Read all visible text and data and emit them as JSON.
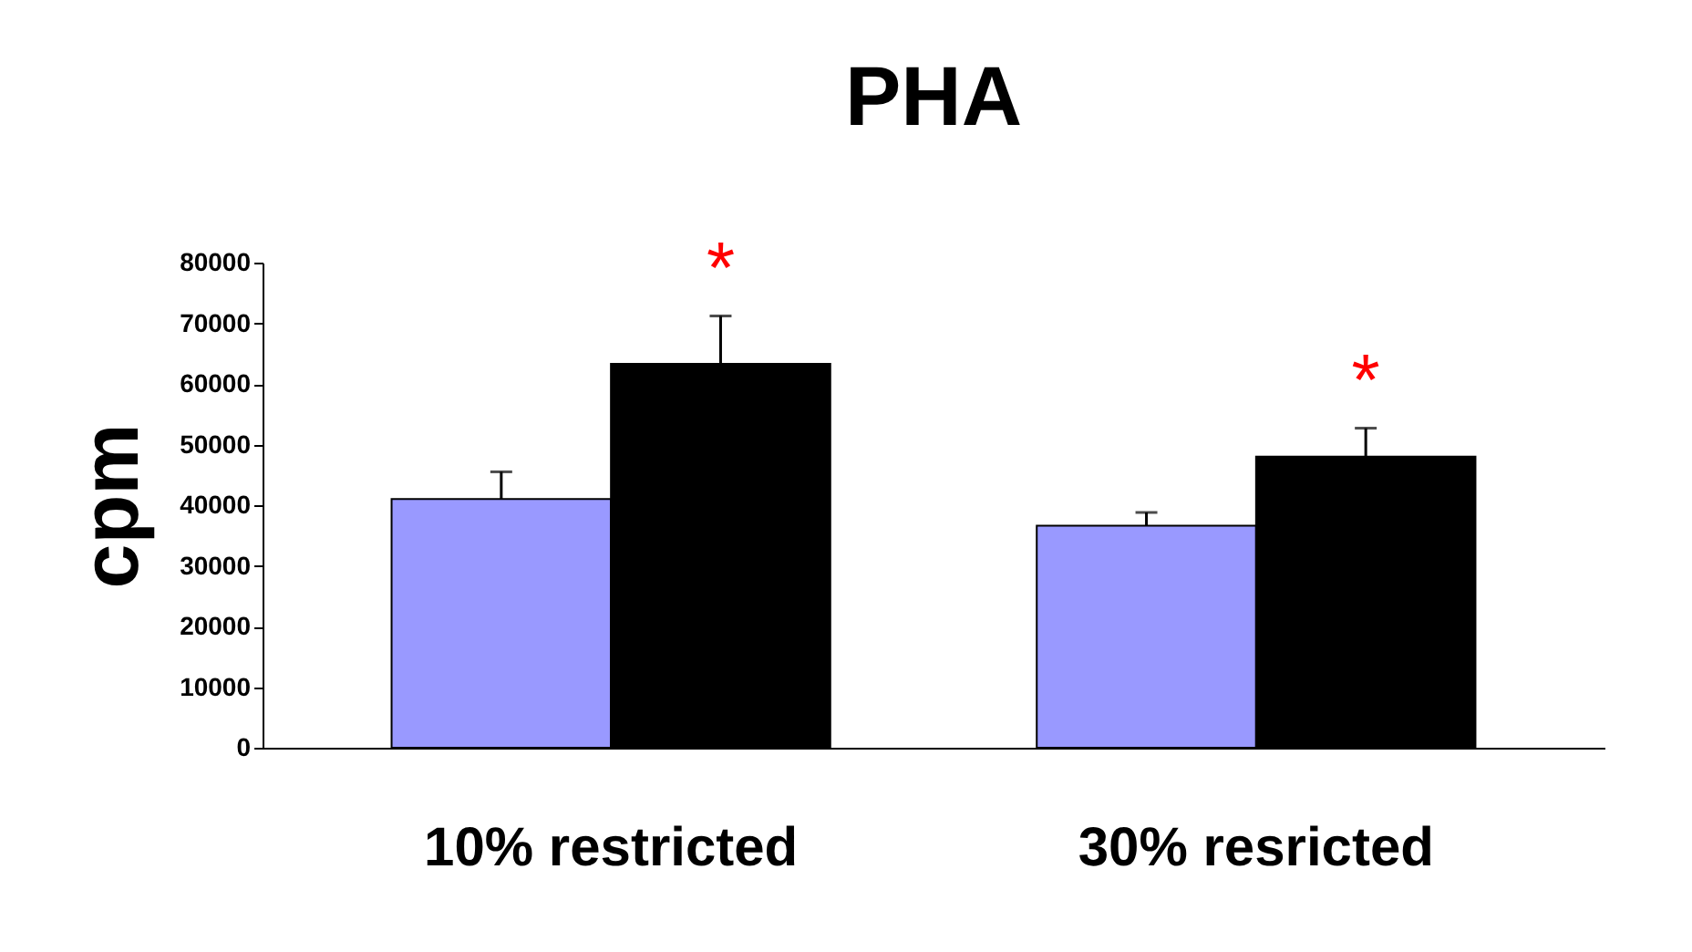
{
  "chart_data": {
    "type": "bar",
    "title": "PHA",
    "ylabel": "cpm",
    "categories": [
      "10% restricted",
      "30% resricted"
    ],
    "series": [
      {
        "color": "#9999ff",
        "values": [
          41000,
          36600
        ],
        "errors": [
          [
            41000,
            45500
          ],
          [
            36600,
            38800
          ]
        ]
      },
      {
        "color": "#000000",
        "values": [
          63300,
          48000
        ],
        "errors": [
          [
            63300,
            71200
          ],
          [
            48000,
            52700
          ]
        ]
      }
    ],
    "ylim": [
      0,
      80000
    ],
    "yticks": [
      0,
      10000,
      20000,
      30000,
      40000,
      50000,
      60000,
      70000,
      80000
    ],
    "grid": false,
    "legend": false,
    "annotations": [
      "*",
      "*"
    ]
  }
}
